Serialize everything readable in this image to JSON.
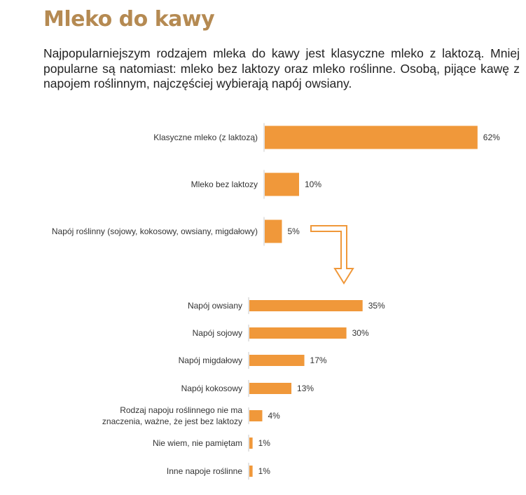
{
  "title": "Mleko do kawy",
  "intro": "Najpopularniejszym rodzajem mleka do kawy jest klasyczne mleko z laktozą. Mniej popularne są natomiast: mleko bez laktozy oraz mleko roślinne. Osobą, pijące kawę z napojem roślinnym, najczęściej wybierają napój owsiany.",
  "colors": {
    "bar": "#f0983a",
    "title": "#b58a52",
    "arrow": "#f0983a"
  },
  "chart_data": [
    {
      "type": "bar",
      "orientation": "horizontal",
      "categories": [
        "Klasyczne mleko (z laktozą)",
        "Mleko bez laktozy",
        "Napój roślinny (sojowy, kokosowy, owsiany, migdałowy)"
      ],
      "values": [
        62,
        10,
        5
      ],
      "labels": [
        "62%",
        "10%",
        "5%"
      ],
      "unit": "%"
    },
    {
      "type": "bar",
      "orientation": "horizontal",
      "categories": [
        "Napój owsiany",
        "Napój sojowy",
        "Napój migdałowy",
        "Napój kokosowy",
        [
          "Rodzaj napoju roślinnego nie ma",
          "znaczenia, ważne, że jest bez laktozy"
        ],
        "Nie wiem, nie pamiętam",
        "Inne napoje roślinne"
      ],
      "values": [
        35,
        30,
        17,
        13,
        4,
        1,
        1
      ],
      "labels": [
        "35%",
        "30%",
        "17%",
        "13%",
        "4%",
        "1%",
        "1%"
      ],
      "unit": "%"
    }
  ]
}
